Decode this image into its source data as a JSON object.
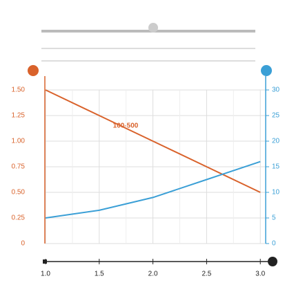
{
  "chart_data": {
    "type": "line",
    "annotation": "100-500",
    "x": [
      1,
      1.5,
      2,
      2.5,
      3
    ],
    "xlim": [
      1,
      3.05
    ],
    "xticks": [
      {
        "value": 1,
        "label": "1.0"
      },
      {
        "value": 1.5,
        "label": "1.5"
      },
      {
        "value": 2,
        "label": "2.0"
      },
      {
        "value": 2.5,
        "label": "2.5"
      },
      {
        "value": 3,
        "label": "3.0"
      }
    ],
    "ylim": [
      0,
      1.5
    ],
    "yticks": [
      0,
      {
        "value": 0.25,
        "label": "0.25"
      },
      {
        "value": 0.5,
        "label": "0.50"
      },
      {
        "value": 0.75,
        "label": "0.75"
      },
      {
        "value": 1,
        "label": "1.00"
      },
      {
        "value": 1.25,
        "label": "1.25"
      },
      {
        "value": 1.5,
        "label": "1.50"
      }
    ],
    "y2lim": [
      0,
      30
    ],
    "y2ticks": [
      0,
      5,
      10,
      15,
      20,
      25,
      30
    ],
    "grid": true,
    "series": [
      {
        "color": "#d9622b",
        "values": [
          1.5,
          1.25,
          1.0,
          0.75,
          0.5
        ]
      },
      {
        "color": "#3a9fd6",
        "axis": "y2",
        "values": [
          5,
          6.5,
          9,
          12.5,
          16
        ]
      }
    ]
  }
}
